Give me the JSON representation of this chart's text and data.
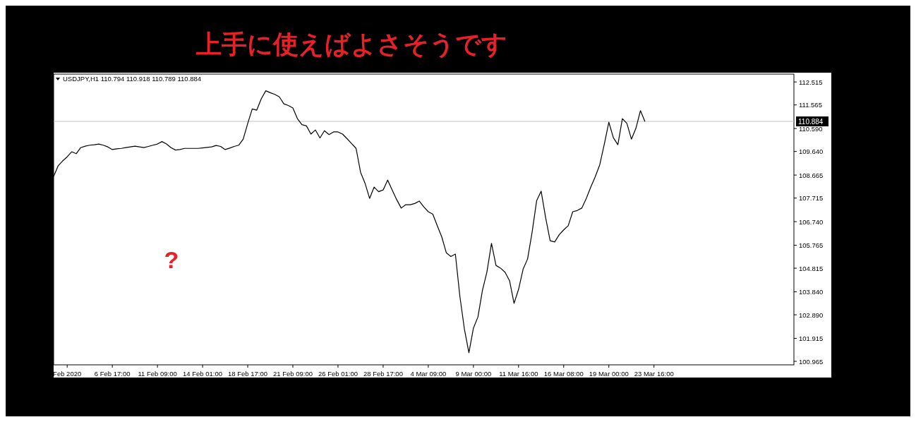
{
  "chart_data": {
    "type": "line",
    "title": "上手に使えばよさそうです",
    "subtitle": "USDJPY,H1  110.794 110.918 110.789 110.884",
    "annotations": [
      "?"
    ],
    "categories": [
      null,
      null,
      null,
      "Feb 2020",
      null,
      null,
      null,
      null,
      null,
      null,
      null,
      null,
      null,
      "6 Feb 17:00",
      null,
      null,
      null,
      null,
      null,
      null,
      null,
      null,
      null,
      "11 Feb 09:00",
      null,
      null,
      null,
      null,
      null,
      null,
      null,
      null,
      null,
      "14 Feb 01:00",
      null,
      null,
      null,
      null,
      null,
      null,
      null,
      null,
      null,
      "18 Feb 17:00",
      null,
      null,
      null,
      null,
      null,
      null,
      null,
      null,
      null,
      "21 Feb 09:00",
      null,
      null,
      null,
      null,
      null,
      null,
      null,
      null,
      null,
      "26 Feb 01:00",
      null,
      null,
      null,
      null,
      null,
      null,
      null,
      null,
      null,
      "28 Feb 17:00",
      null,
      null,
      null,
      null,
      null,
      null,
      null,
      null,
      null,
      "4 Mar 09:00",
      null,
      null,
      null,
      null,
      null,
      null,
      null,
      null,
      null,
      "9 Mar 00:00",
      null,
      null,
      null,
      null,
      null,
      null,
      null,
      null,
      null,
      "11 Mar 16:00",
      null,
      null,
      null,
      null,
      null,
      null,
      null,
      null,
      null,
      "16 Mar 08:00",
      null,
      null,
      null,
      null,
      null,
      null,
      null,
      null,
      null,
      "19 Mar 00:00",
      null,
      null,
      null,
      null,
      null,
      null,
      null,
      null,
      null,
      "23 Mar 16:00",
      null,
      null,
      null,
      null,
      null,
      null,
      null,
      null,
      null,
      null,
      null,
      null,
      null,
      null,
      null,
      null,
      null,
      null,
      null,
      null,
      null,
      null,
      null,
      null,
      null,
      null,
      null,
      null,
      null,
      null,
      null
    ],
    "series": [
      {
        "color": "#000000",
        "values": [
          108.61,
          109.05,
          109.25,
          109.42,
          109.63,
          109.55,
          109.8,
          109.86,
          109.9,
          109.92,
          109.95,
          109.9,
          109.83,
          109.72,
          109.75,
          109.77,
          109.8,
          109.83,
          109.86,
          109.83,
          109.8,
          109.85,
          109.9,
          109.95,
          110.05,
          109.95,
          109.8,
          109.7,
          109.72,
          109.77,
          109.77,
          109.77,
          109.77,
          109.79,
          109.81,
          109.83,
          109.89,
          109.85,
          109.72,
          109.78,
          109.85,
          109.9,
          110.15,
          110.8,
          111.4,
          111.35,
          111.82,
          112.15,
          112.07,
          112.0,
          111.9,
          111.61,
          111.54,
          111.44,
          111.0,
          110.75,
          110.7,
          110.36,
          110.53,
          110.2,
          110.5,
          110.34,
          110.45,
          110.45,
          110.36,
          110.17,
          109.97,
          109.77,
          108.78,
          108.32,
          107.7,
          108.17,
          107.98,
          108.05,
          108.46,
          108.05,
          107.65,
          107.3,
          107.44,
          107.44,
          107.49,
          107.59,
          107.35,
          107.15,
          107.05,
          106.57,
          106.1,
          105.45,
          105.3,
          105.4,
          103.65,
          102.3,
          101.32,
          102.34,
          102.8,
          103.9,
          104.67,
          105.84,
          104.93,
          104.82,
          104.65,
          104.3,
          103.36,
          103.94,
          104.77,
          105.2,
          106.3,
          107.6,
          108.0,
          106.9,
          105.95,
          105.9,
          106.2,
          106.4,
          106.57,
          107.15,
          107.2,
          107.3,
          107.7,
          108.17,
          108.6,
          109.1,
          109.95,
          110.85,
          110.21,
          109.92,
          111.0,
          110.8,
          110.15,
          110.6,
          111.33,
          110.88,
          null,
          null,
          null,
          null,
          null,
          null,
          null,
          null,
          null,
          null,
          null,
          null,
          null,
          null,
          null,
          null,
          null,
          null,
          null,
          null,
          null,
          null,
          null,
          null,
          null,
          null,
          null,
          null,
          null,
          null,
          null,
          null,
          null
        ]
      }
    ],
    "ylim": [
      100.82,
      112.84
    ],
    "yticks": [
      112.515,
      111.565,
      {
        "value": 110.59,
        "label": "110.590"
      },
      {
        "value": 109.64,
        "label": "109.640"
      },
      108.665,
      107.715,
      {
        "value": 106.74,
        "label": "106.740"
      },
      105.765,
      104.815,
      {
        "value": 103.84,
        "label": "103.840"
      },
      {
        "value": 102.89,
        "label": "102.890"
      },
      101.915,
      100.965
    ],
    "ref_lines": [
      {
        "axis": "y",
        "value": 110.884,
        "label": "110.884",
        "color": "#c0c0c0"
      }
    ],
    "grid": false,
    "line_style": "solid",
    "marker": "none"
  }
}
